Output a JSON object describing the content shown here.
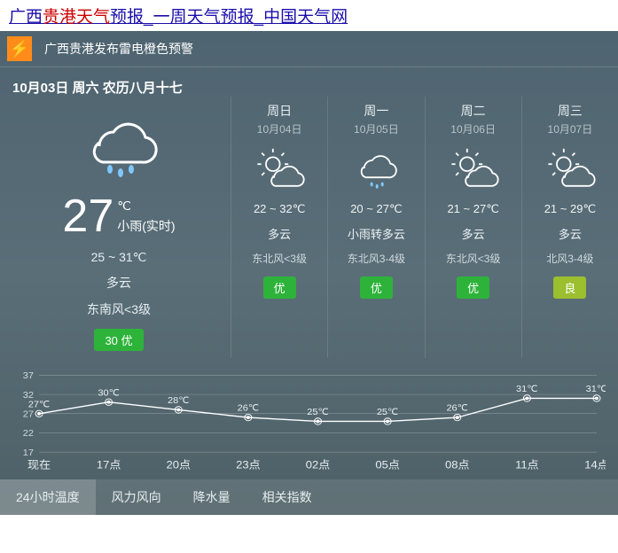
{
  "header": {
    "prefix": "广西",
    "highlight": "贵港天气",
    "suffix": "预报_一周天气预报_中国天气网"
  },
  "alert": {
    "icon_symbol": "⚡",
    "text": "广西贵港发布雷电橙色预警",
    "bg": "#ff8c1a"
  },
  "current": {
    "date_line": "10月03日 周六 农历八月十七",
    "temp": "27",
    "unit": "℃",
    "realtime_cond": "小雨(实时)",
    "range": "25 ~ 31℃",
    "cond": "多云",
    "wind": "东南风<3级",
    "aqi_value": "30",
    "aqi_level": "优",
    "aqi_bg": "#2eb33a",
    "icon_type": "rain"
  },
  "forecast": [
    {
      "day": "周日",
      "date": "10月04日",
      "icon_type": "partly",
      "range": "22 ~ 32℃",
      "cond": "多云",
      "wind": "东北风<3级",
      "aqi_level": "优",
      "aqi_bg": "#2eb33a"
    },
    {
      "day": "周一",
      "date": "10月05日",
      "icon_type": "rain",
      "range": "20 ~ 27℃",
      "cond": "小雨转多云",
      "wind": "东北风3-4级",
      "aqi_level": "优",
      "aqi_bg": "#2eb33a"
    },
    {
      "day": "周二",
      "date": "10月06日",
      "icon_type": "partly",
      "range": "21 ~ 27℃",
      "cond": "多云",
      "wind": "东北风<3级",
      "aqi_level": "优",
      "aqi_bg": "#2eb33a"
    },
    {
      "day": "周三",
      "date": "10月07日",
      "icon_type": "partly",
      "range": "21 ~ 29℃",
      "cond": "多云",
      "wind": "北风3-4级",
      "aqi_level": "良",
      "aqi_bg": "#9bbf2e"
    }
  ],
  "hourly_chart": {
    "type": "line",
    "ylim": [
      17,
      37
    ],
    "yticks": [
      17,
      22,
      27,
      32,
      37
    ],
    "grid_color": "rgba(255,255,255,0.4)",
    "line_color": "#ffffff",
    "point_label_suffix": "℃",
    "label_fontsize": 11,
    "points": [
      {
        "x": "现在",
        "value": 27
      },
      {
        "x": "17点",
        "value": 30
      },
      {
        "x": "20点",
        "value": 28
      },
      {
        "x": "23点",
        "value": 26
      },
      {
        "x": "02点",
        "value": 25
      },
      {
        "x": "05点",
        "value": 25
      },
      {
        "x": "08点",
        "value": 26
      },
      {
        "x": "11点",
        "value": 31
      },
      {
        "x": "14点",
        "value": 31
      }
    ]
  },
  "tabs": [
    {
      "label": "24小时温度",
      "active": true
    },
    {
      "label": "风力风向",
      "active": false
    },
    {
      "label": "降水量",
      "active": false
    },
    {
      "label": "相关指数",
      "active": false
    }
  ],
  "icons": {
    "rain": {
      "cloud": "#ffffff",
      "drops": "#7fc8ff"
    },
    "partly": {
      "sun": "#ffffff",
      "cloud": "#ffffff"
    }
  },
  "colors": {
    "container_bg_top": "#4e6470",
    "container_bg_bottom": "#4e6066",
    "text_primary": "#ffffff",
    "text_secondary": "#d0dadd"
  }
}
